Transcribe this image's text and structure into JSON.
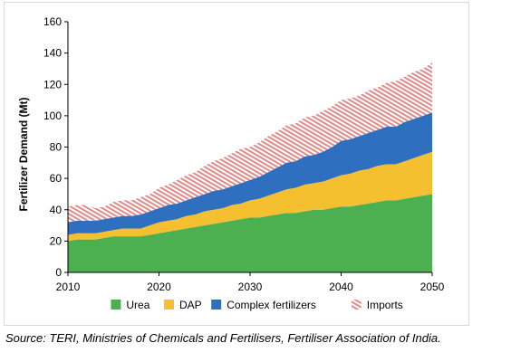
{
  "chart_data": {
    "type": "area",
    "stacked": true,
    "x": [
      2010,
      2011,
      2012,
      2013,
      2014,
      2015,
      2016,
      2017,
      2018,
      2019,
      2020,
      2021,
      2022,
      2023,
      2024,
      2025,
      2026,
      2027,
      2028,
      2029,
      2030,
      2031,
      2032,
      2033,
      2034,
      2035,
      2036,
      2037,
      2038,
      2039,
      2040,
      2041,
      2042,
      2043,
      2044,
      2045,
      2046,
      2047,
      2048,
      2049,
      2050
    ],
    "series": [
      {
        "name": "Urea",
        "color": "#4caf50",
        "pattern": "solid",
        "values": [
          20,
          21,
          21,
          21,
          22,
          23,
          23,
          23,
          23,
          24,
          25,
          26,
          27,
          28,
          29,
          30,
          31,
          32,
          33,
          34,
          35,
          35,
          36,
          37,
          38,
          38,
          39,
          40,
          40,
          41,
          42,
          42,
          43,
          44,
          45,
          46,
          46,
          47,
          48,
          49,
          50
        ]
      },
      {
        "name": "DAP",
        "color": "#f5c030",
        "pattern": "solid",
        "values": [
          4,
          4,
          4,
          4,
          4,
          4,
          5,
          5,
          5,
          6,
          7,
          7,
          7,
          8,
          8,
          9,
          9,
          9,
          10,
          10,
          11,
          12,
          13,
          14,
          15,
          16,
          17,
          17,
          18,
          19,
          20,
          21,
          22,
          22,
          23,
          23,
          23,
          24,
          25,
          26,
          27
        ]
      },
      {
        "name": "Complex fertilizers",
        "color": "#2e6fc0",
        "pattern": "solid",
        "values": [
          8,
          8,
          8,
          8,
          8,
          8,
          8,
          8,
          9,
          9,
          9,
          10,
          10,
          10,
          11,
          11,
          12,
          12,
          12,
          13,
          13,
          14,
          15,
          16,
          17,
          17,
          18,
          18,
          19,
          20,
          22,
          22,
          22,
          23,
          23,
          24,
          24,
          25,
          25,
          25,
          25
        ]
      },
      {
        "name": "Imports",
        "color": "#e08a8a",
        "pattern": "hatched",
        "values": [
          10,
          10,
          10,
          8,
          8,
          10,
          10,
          10,
          11,
          11,
          13,
          13,
          15,
          16,
          16,
          18,
          19,
          20,
          21,
          22,
          21,
          22,
          23,
          23,
          24,
          24,
          25,
          25,
          26,
          26,
          26,
          26,
          26,
          27,
          27,
          28,
          29,
          29,
          30,
          30,
          32
        ]
      }
    ],
    "title": "",
    "xlabel": "",
    "ylabel": "Fertilizer Demand (Mt)",
    "xlim": [
      2010,
      2050
    ],
    "ylim": [
      0,
      160
    ],
    "x_ticks": [
      2010,
      2020,
      2030,
      2040,
      2050
    ],
    "y_ticks": [
      0,
      20,
      40,
      60,
      80,
      100,
      120,
      140,
      160
    ],
    "grid": false,
    "legend_position": "bottom"
  },
  "caption": "Source: TERI, Ministries of Chemicals and Fertilisers, Fertiliser Association of India."
}
